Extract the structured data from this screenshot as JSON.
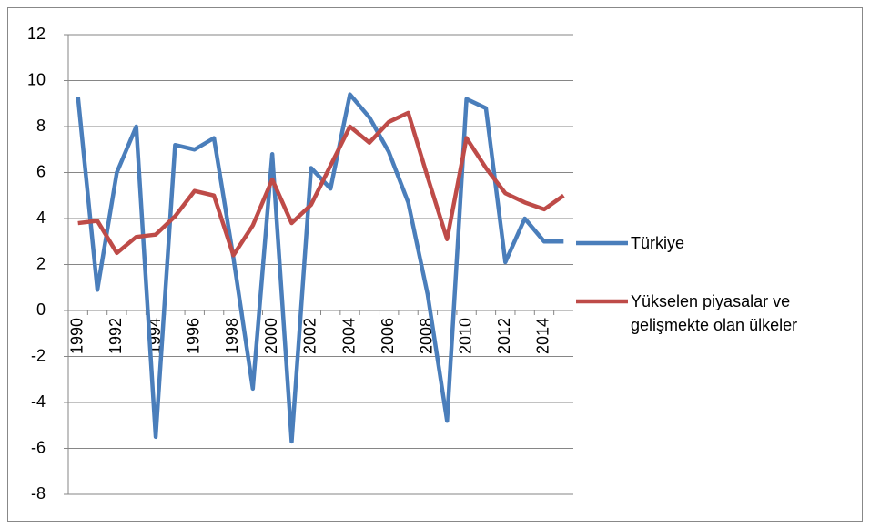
{
  "chart_data": {
    "type": "line",
    "categories": [
      "1990",
      null,
      "1992",
      null,
      "1994",
      null,
      "1996",
      null,
      "1998",
      null,
      "2000",
      null,
      "2002",
      null,
      "2004",
      null,
      "2006",
      null,
      "2008",
      null,
      "2010",
      null,
      "2012",
      null,
      "2014",
      null
    ],
    "series": [
      {
        "name": "Türkiye",
        "color": "#4a7ebb",
        "values": [
          9.3,
          0.9,
          6.0,
          8.0,
          -5.5,
          7.2,
          7.0,
          7.5,
          2.3,
          -3.4,
          6.8,
          -5.7,
          6.2,
          5.3,
          9.4,
          8.4,
          6.9,
          4.7,
          0.7,
          -4.8,
          9.2,
          8.8,
          2.1,
          4.0,
          3.0,
          3.0
        ]
      },
      {
        "name": "Yükselen piyasalar ve gelişmekte olan ülkeler",
        "color": "#be4b48",
        "values": [
          3.8,
          3.9,
          2.5,
          3.2,
          3.3,
          4.1,
          5.2,
          5.0,
          2.4,
          3.7,
          5.7,
          3.8,
          4.6,
          6.3,
          8.0,
          7.3,
          8.2,
          8.6,
          5.8,
          3.1,
          7.5,
          6.2,
          5.1,
          4.7,
          4.4,
          5.0
        ]
      }
    ],
    "ylim": [
      -8,
      12
    ],
    "yticks": [
      -8,
      -6,
      -4,
      -2,
      0,
      2,
      4,
      6,
      8,
      10,
      12
    ],
    "grid": true,
    "legend": "right"
  }
}
